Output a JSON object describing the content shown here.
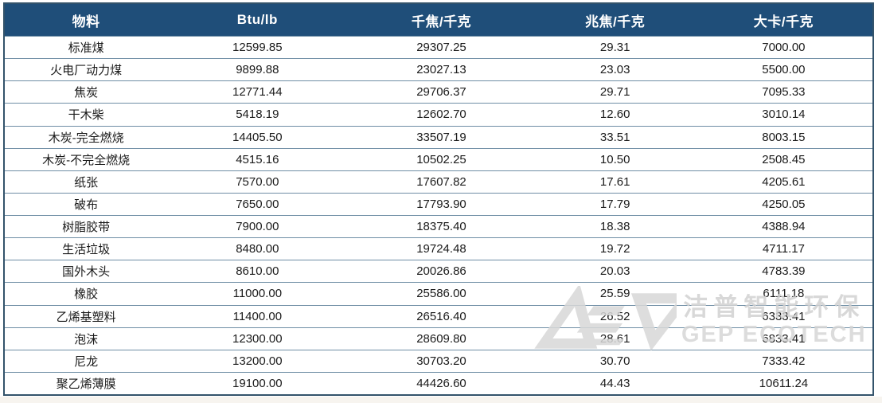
{
  "table": {
    "columns": [
      "物料",
      "Btu/lb",
      "千焦/千克",
      "兆焦/千克",
      "大卡/千克"
    ],
    "rows": [
      [
        "标准煤",
        "12599.85",
        "29307.25",
        "29.31",
        "7000.00"
      ],
      [
        "火电厂动力煤",
        "9899.88",
        "23027.13",
        "23.03",
        "5500.00"
      ],
      [
        "焦炭",
        "12771.44",
        "29706.37",
        "29.71",
        "7095.33"
      ],
      [
        "干木柴",
        "5418.19",
        "12602.70",
        "12.60",
        "3010.14"
      ],
      [
        "木炭-完全燃烧",
        "14405.50",
        "33507.19",
        "33.51",
        "8003.15"
      ],
      [
        "木炭-不完全燃烧",
        "4515.16",
        "10502.25",
        "10.50",
        "2508.45"
      ],
      [
        "纸张",
        "7570.00",
        "17607.82",
        "17.61",
        "4205.61"
      ],
      [
        "破布",
        "7650.00",
        "17793.90",
        "17.79",
        "4250.05"
      ],
      [
        "树脂胶带",
        "7900.00",
        "18375.40",
        "18.38",
        "4388.94"
      ],
      [
        "生活垃圾",
        "8480.00",
        "19724.48",
        "19.72",
        "4711.17"
      ],
      [
        "国外木头",
        "8610.00",
        "20026.86",
        "20.03",
        "4783.39"
      ],
      [
        "橡胶",
        "11000.00",
        "25586.00",
        "25.59",
        "6111.18"
      ],
      [
        "乙烯基塑料",
        "11400.00",
        "26516.40",
        "26.52",
        "6333.41"
      ],
      [
        "泡沫",
        "12300.00",
        "28609.80",
        "28.61",
        "6833.41"
      ],
      [
        "尼龙",
        "13200.00",
        "30703.20",
        "30.70",
        "7333.42"
      ],
      [
        "聚乙烯薄膜",
        "19100.00",
        "44426.60",
        "44.43",
        "10611.24"
      ]
    ]
  },
  "watermark": {
    "line1": "洁普智能环保",
    "line2": "GEP ECOTECH",
    "logo": "gep-ecotech-logo"
  },
  "colors": {
    "header_bg": "#1F4E79",
    "header_text": "#FFFFFF",
    "row_border": "#6F8EA5",
    "outer_border": "#33536B",
    "body_text": "#1B1B1B",
    "watermark_gray": "#D2D2D2"
  }
}
